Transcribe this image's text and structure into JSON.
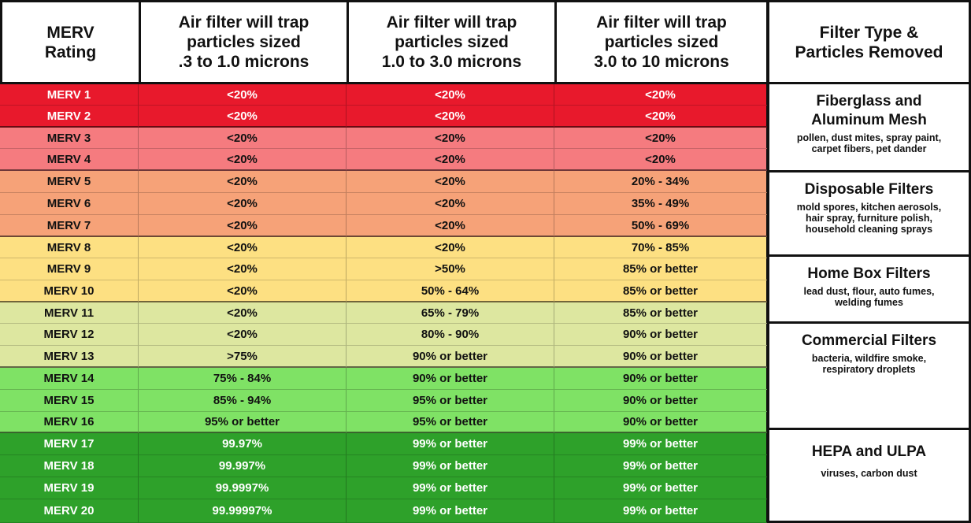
{
  "headers": [
    [
      "MERV",
      "Rating"
    ],
    [
      "Air filter will trap",
      "particles sized",
      ".3 to 1.0 microns"
    ],
    [
      "Air filter will trap",
      "particles sized",
      "1.0 to 3.0 microns"
    ],
    [
      "Air filter will trap",
      "particles sized",
      "3.0 to 10 microns"
    ],
    [
      "Filter Type &",
      "Particles Removed"
    ]
  ],
  "rows": [
    {
      "rating": "MERV 1",
      "a": "<20%",
      "b": "<20%",
      "c": "<20%",
      "tone": "red"
    },
    {
      "rating": "MERV 2",
      "a": "<20%",
      "b": "<20%",
      "c": "<20%",
      "tone": "red"
    },
    {
      "rating": "MERV 3",
      "a": "<20%",
      "b": "<20%",
      "c": "<20%",
      "tone": "salmon"
    },
    {
      "rating": "MERV 4",
      "a": "<20%",
      "b": "<20%",
      "c": "<20%",
      "tone": "salmon"
    },
    {
      "rating": "MERV 5",
      "a": "<20%",
      "b": "<20%",
      "c": "20% - 34%",
      "tone": "orange"
    },
    {
      "rating": "MERV 6",
      "a": "<20%",
      "b": "<20%",
      "c": "35% - 49%",
      "tone": "orange"
    },
    {
      "rating": "MERV 7",
      "a": "<20%",
      "b": "<20%",
      "c": "50% - 69%",
      "tone": "orange"
    },
    {
      "rating": "MERV 8",
      "a": "<20%",
      "b": "<20%",
      "c": "70% - 85%",
      "tone": "yellow"
    },
    {
      "rating": "MERV 9",
      "a": "<20%",
      "b": ">50%",
      "c": "85% or better",
      "tone": "yellow"
    },
    {
      "rating": "MERV 10",
      "a": "<20%",
      "b": "50% - 64%",
      "c": "85% or better",
      "tone": "yellow"
    },
    {
      "rating": "MERV 11",
      "a": "<20%",
      "b": "65% - 79%",
      "c": "85% or better",
      "tone": "pale"
    },
    {
      "rating": "MERV 12",
      "a": "<20%",
      "b": "80% - 90%",
      "c": "90% or better",
      "tone": "pale"
    },
    {
      "rating": "MERV 13",
      "a": ">75%",
      "b": "90% or better",
      "c": "90% or better",
      "tone": "pale"
    },
    {
      "rating": "MERV 14",
      "a": "75% - 84%",
      "b": "90% or better",
      "c": "90% or better",
      "tone": "lgreen"
    },
    {
      "rating": "MERV 15",
      "a": "85% - 94%",
      "b": "95% or better",
      "c": "90% or better",
      "tone": "lgreen"
    },
    {
      "rating": "MERV 16",
      "a": "95% or better",
      "b": "95% or better",
      "c": "90% or better",
      "tone": "lgreen"
    },
    {
      "rating": "MERV 17",
      "a": "99.97%",
      "b": "99% or better",
      "c": "99% or better",
      "tone": "dgreen"
    },
    {
      "rating": "MERV 18",
      "a": "99.997%",
      "b": "99% or better",
      "c": "99% or better",
      "tone": "dgreen"
    },
    {
      "rating": "MERV 19",
      "a": "99.9997%",
      "b": "99% or better",
      "c": "99% or better",
      "tone": "dgreen"
    },
    {
      "rating": "MERV 20",
      "a": "99.99997%",
      "b": "99% or better",
      "c": "99% or better",
      "tone": "dgreen"
    }
  ],
  "filter_types": [
    {
      "name_lines": [
        "Fiberglass and",
        "Aluminum Mesh"
      ],
      "desc_lines": [
        "pollen, dust mites, spray paint,",
        "carpet fibers, pet dander"
      ]
    },
    {
      "name_lines": [
        "Disposable Filters"
      ],
      "desc_lines": [
        "mold spores, kitchen aerosols,",
        "hair spray, furniture polish,",
        "household cleaning sprays"
      ]
    },
    {
      "name_lines": [
        "Home Box Filters"
      ],
      "desc_lines": [
        "lead dust, flour, auto fumes,",
        "welding fumes"
      ]
    },
    {
      "name_lines": [
        "Commercial Filters"
      ],
      "desc_lines": [
        "bacteria, wildfire smoke,",
        "respiratory droplets"
      ]
    },
    {
      "name_lines": [
        "HEPA and ULPA"
      ],
      "desc_lines": [
        "viruses, carbon dust"
      ]
    }
  ]
}
